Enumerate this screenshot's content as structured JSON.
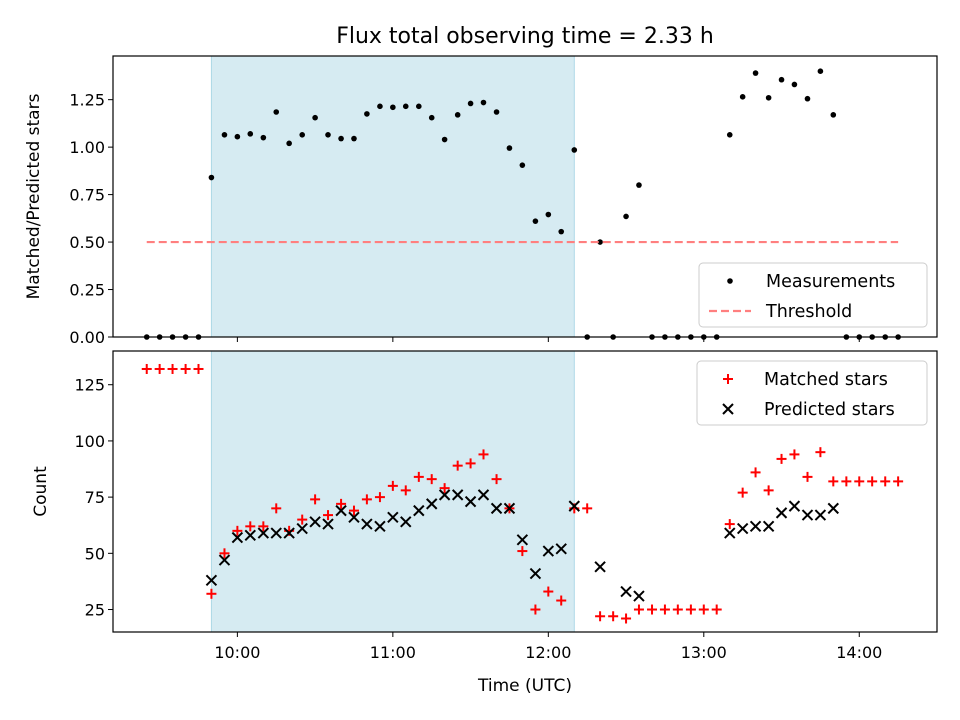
{
  "figure_title": "Flux total observing time = 2.33 h",
  "chart_data": [
    {
      "type": "scatter",
      "panel": "top",
      "title": "Flux total observing time = 2.33 h",
      "xlabel": "",
      "ylabel": "Matched/Predicted stars",
      "x_unit": "hours UTC",
      "xlim": [
        9.2,
        14.5
      ],
      "ylim": [
        0,
        1.48
      ],
      "yticks": [
        0.0,
        0.25,
        0.5,
        0.75,
        1.0,
        1.25
      ],
      "ytick_labels": [
        "0.00",
        "0.25",
        "0.50",
        "0.75",
        "1.00",
        "1.25"
      ],
      "observing_window": [
        9.833,
        12.167
      ],
      "legend_position": "lower right",
      "series": [
        {
          "name": "Measurements",
          "color": "#000000",
          "marker": "dot",
          "x": [
            9.417,
            9.5,
            9.583,
            9.667,
            9.75,
            9.833,
            9.917,
            10.0,
            10.083,
            10.167,
            10.25,
            10.333,
            10.417,
            10.5,
            10.583,
            10.667,
            10.75,
            10.833,
            10.917,
            11.0,
            11.083,
            11.167,
            11.25,
            11.333,
            11.417,
            11.5,
            11.583,
            11.667,
            11.75,
            11.833,
            11.917,
            12.0,
            12.083,
            12.167,
            12.25,
            12.333,
            12.417,
            12.5,
            12.583,
            12.667,
            12.75,
            12.833,
            12.917,
            13.0,
            13.083,
            13.167,
            13.25,
            13.333,
            13.417,
            13.5,
            13.583,
            13.667,
            13.75,
            13.833,
            13.917,
            14.0,
            14.083,
            14.167,
            14.25
          ],
          "y": [
            0.0,
            0.0,
            0.0,
            0.0,
            0.0,
            0.84,
            1.065,
            1.055,
            1.07,
            1.05,
            1.185,
            1.02,
            1.065,
            1.155,
            1.065,
            1.045,
            1.045,
            1.175,
            1.215,
            1.21,
            1.215,
            1.215,
            1.155,
            1.04,
            1.17,
            1.23,
            1.235,
            1.185,
            0.995,
            0.905,
            0.61,
            0.645,
            0.555,
            0.985,
            0.0,
            0.5,
            0.0,
            0.635,
            0.8,
            0.0,
            0.0,
            0.0,
            0.0,
            0.0,
            0.0,
            1.065,
            1.265,
            1.39,
            1.26,
            1.355,
            1.33,
            1.255,
            1.4,
            1.17,
            0.0,
            0.0,
            0.0,
            0.0,
            0.0
          ]
        },
        {
          "name": "Threshold",
          "color": "#ff7f7f",
          "style": "dashed",
          "x": [
            9.417,
            14.25
          ],
          "y": [
            0.5,
            0.5
          ]
        }
      ]
    },
    {
      "type": "scatter",
      "panel": "bottom",
      "xlabel": "Time (UTC)",
      "ylabel": "Count",
      "x_unit": "hours UTC",
      "xlim": [
        9.2,
        14.5
      ],
      "ylim": [
        15,
        140
      ],
      "xticks": [
        10,
        11,
        12,
        13,
        14
      ],
      "xtick_labels": [
        "10:00",
        "11:00",
        "12:00",
        "13:00",
        "14:00"
      ],
      "yticks": [
        25,
        50,
        75,
        100,
        125
      ],
      "ytick_labels": [
        "25",
        "50",
        "75",
        "100",
        "125"
      ],
      "observing_window": [
        9.833,
        12.167
      ],
      "legend_position": "upper right",
      "series": [
        {
          "name": "Matched stars",
          "color": "#ff0000",
          "marker": "plus",
          "x": [
            9.417,
            9.5,
            9.583,
            9.667,
            9.75,
            9.833,
            9.917,
            10.0,
            10.083,
            10.167,
            10.25,
            10.333,
            10.417,
            10.5,
            10.583,
            10.667,
            10.75,
            10.833,
            10.917,
            11.0,
            11.083,
            11.167,
            11.25,
            11.333,
            11.417,
            11.5,
            11.583,
            11.667,
            11.75,
            11.833,
            11.917,
            12.0,
            12.083,
            12.167,
            12.25,
            12.333,
            12.417,
            12.5,
            12.583,
            12.667,
            12.75,
            12.833,
            12.917,
            13.0,
            13.083,
            13.167,
            13.25,
            13.333,
            13.417,
            13.5,
            13.583,
            13.667,
            13.75,
            13.833,
            13.917,
            14.0,
            14.083,
            14.167,
            14.25
          ],
          "y": [
            132,
            132,
            132,
            132,
            132,
            32,
            50,
            60,
            62,
            62,
            70,
            60,
            65,
            74,
            67,
            72,
            69,
            74,
            75,
            80,
            78,
            84,
            83,
            79,
            89,
            90,
            94,
            83,
            70,
            51,
            25,
            33,
            29,
            70,
            70,
            22,
            22,
            21,
            25,
            25,
            25,
            25,
            25,
            25,
            25,
            63,
            77,
            86,
            78,
            92,
            94,
            84,
            95,
            82,
            82,
            82,
            82,
            82,
            82
          ]
        },
        {
          "name": "Predicted stars",
          "color": "#000000",
          "marker": "x",
          "x": [
            9.833,
            9.917,
            10.0,
            10.083,
            10.167,
            10.25,
            10.333,
            10.417,
            10.5,
            10.583,
            10.667,
            10.75,
            10.833,
            10.917,
            11.0,
            11.083,
            11.167,
            11.25,
            11.333,
            11.417,
            11.5,
            11.583,
            11.667,
            11.75,
            11.833,
            11.917,
            12.0,
            12.083,
            12.167,
            12.333,
            12.5,
            12.583,
            13.167,
            13.25,
            13.333,
            13.417,
            13.5,
            13.583,
            13.667,
            13.75,
            13.833
          ],
          "y": [
            38,
            47,
            57,
            58,
            59,
            59,
            59,
            61,
            64,
            63,
            69,
            66,
            63,
            62,
            66,
            64,
            69,
            72,
            76,
            76,
            73,
            76,
            70,
            70,
            56,
            41,
            51,
            52,
            71,
            44,
            33,
            31,
            59,
            61,
            62,
            62,
            68,
            71,
            67,
            67,
            70
          ]
        }
      ]
    }
  ],
  "colors": {
    "observing_window_fill": "#add8e6",
    "threshold": "#ff7f7f",
    "matched": "#ff0000",
    "measurement": "#000000"
  }
}
